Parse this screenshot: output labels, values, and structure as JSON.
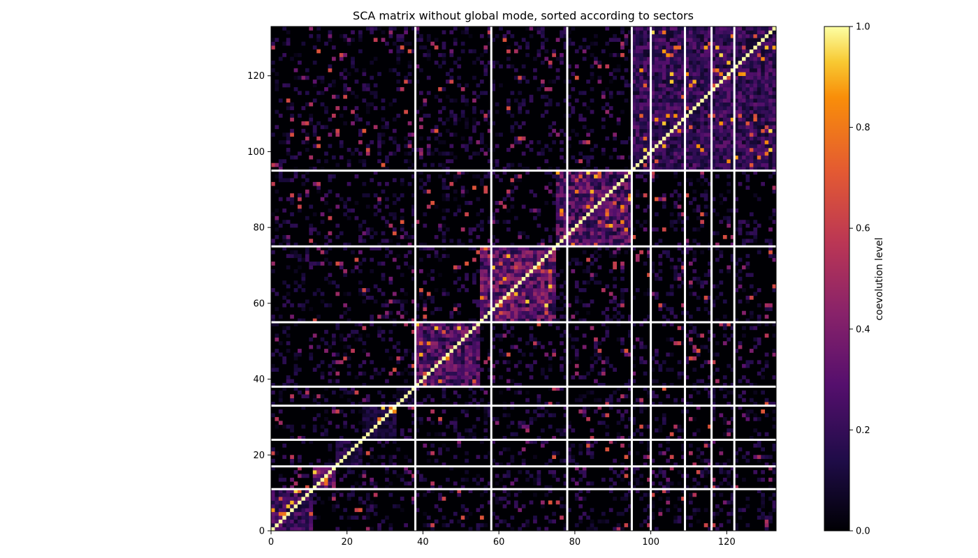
{
  "chart_data": {
    "type": "heatmap",
    "title": "SCA matrix without global mode, sorted according to sectors",
    "xlabel": "",
    "ylabel": "",
    "xlim": [
      0,
      133
    ],
    "ylim": [
      0,
      133
    ],
    "n": 133,
    "x_ticks": [
      0,
      20,
      40,
      60,
      80,
      100,
      120
    ],
    "y_ticks": [
      0,
      20,
      40,
      60,
      80,
      100,
      120
    ],
    "sector_boundaries": [
      11,
      17,
      24,
      33,
      38,
      55,
      75,
      95
    ],
    "sector_boundaries_x": [
      38,
      58,
      78,
      95,
      100,
      109,
      116,
      122
    ],
    "blocks_y": [
      {
        "start": 0,
        "end": 11,
        "level": 0.25
      },
      {
        "start": 11,
        "end": 17,
        "level": 0.35
      },
      {
        "start": 17,
        "end": 24,
        "level": 0.15
      },
      {
        "start": 24,
        "end": 33,
        "level": 0.12
      },
      {
        "start": 33,
        "end": 38,
        "level": 0.1
      },
      {
        "start": 38,
        "end": 55,
        "level": 0.3
      },
      {
        "start": 55,
        "end": 75,
        "level": 0.35
      },
      {
        "start": 75,
        "end": 95,
        "level": 0.3
      },
      {
        "start": 95,
        "end": 133,
        "level": 0.22
      }
    ],
    "colormap": "inferno",
    "colorbar": {
      "label": "coevolution level",
      "range": [
        0.0,
        1.0
      ],
      "ticks": [
        "0.0",
        "0.2",
        "0.4",
        "0.6",
        "0.8",
        "1.0"
      ]
    },
    "grid": false
  }
}
